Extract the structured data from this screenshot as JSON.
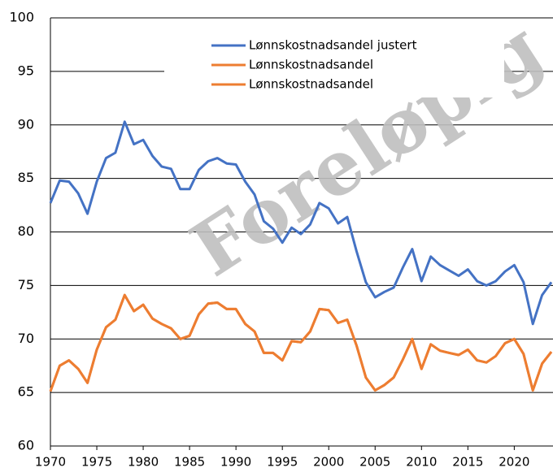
{
  "chart_data": {
    "type": "line",
    "watermark": "Foreløpig",
    "x": [
      1970,
      1971,
      1972,
      1973,
      1974,
      1975,
      1976,
      1977,
      1978,
      1979,
      1980,
      1981,
      1982,
      1983,
      1984,
      1985,
      1986,
      1987,
      1988,
      1989,
      1990,
      1991,
      1992,
      1993,
      1994,
      1995,
      1996,
      1997,
      1998,
      1999,
      2000,
      2001,
      2002,
      2003,
      2004,
      2005,
      2006,
      2007,
      2008,
      2009,
      2010,
      2011,
      2012,
      2013,
      2014,
      2015,
      2016,
      2017,
      2018,
      2019,
      2020,
      2021,
      2022,
      2023,
      2024
    ],
    "series": [
      {
        "name": "Lønnskostnadsandel justert",
        "color": "#4472c4",
        "values": [
          82.7,
          84.8,
          84.7,
          83.6,
          81.7,
          84.7,
          86.9,
          87.4,
          90.3,
          88.2,
          88.6,
          87.1,
          86.1,
          85.9,
          84.0,
          84.0,
          85.8,
          86.6,
          86.9,
          86.4,
          86.3,
          84.7,
          83.5,
          81.0,
          80.3,
          79.0,
          80.4,
          79.8,
          80.7,
          82.7,
          82.2,
          80.8,
          81.4,
          78.2,
          75.3,
          73.9,
          74.4,
          74.8,
          76.7,
          78.4,
          75.4,
          77.7,
          76.9,
          76.4,
          75.9,
          76.5,
          75.4,
          75.0,
          75.4,
          76.3,
          76.9,
          75.3,
          71.4,
          74.1,
          75.3
        ]
      },
      {
        "name": "Lønnskostnadsandel",
        "color": "#ed7d31",
        "values": [
          65.1,
          67.5,
          68.0,
          67.2,
          65.9,
          69.0,
          71.1,
          71.8,
          74.1,
          72.6,
          73.2,
          71.9,
          71.4,
          71.0,
          70.0,
          70.3,
          72.3,
          73.3,
          73.4,
          72.8,
          72.8,
          71.4,
          70.7,
          68.7,
          68.7,
          68.0,
          69.8,
          69.7,
          70.7,
          72.8,
          72.7,
          71.5,
          71.8,
          69.4,
          66.4,
          65.2,
          65.7,
          66.4,
          68.1,
          70.0,
          67.2,
          69.5,
          68.9,
          68.7,
          68.5,
          69.0,
          68.0,
          67.8,
          68.4,
          69.6,
          70.0,
          68.6,
          65.2,
          67.7,
          68.8
        ]
      },
      {
        "name": "Lønnskostnadsandel",
        "color": "#ed7d31",
        "values": [
          65.1,
          67.5,
          68.0,
          67.2,
          65.9,
          69.0,
          71.1,
          71.8,
          74.1,
          72.6,
          73.2,
          71.9,
          71.4,
          71.0,
          70.0,
          70.3,
          72.3,
          73.3,
          73.4,
          72.8,
          72.8,
          71.4,
          70.7,
          68.7,
          68.7,
          68.0,
          69.8,
          69.7,
          70.7,
          72.8,
          72.7,
          71.5,
          71.8,
          69.4,
          66.4,
          65.2,
          65.7,
          66.4,
          68.1,
          70.0,
          67.2,
          69.5,
          68.9,
          68.7,
          68.5,
          69.0,
          68.0,
          67.8,
          68.4,
          69.6,
          70.0,
          68.6,
          65.2,
          67.7,
          68.8
        ]
      }
    ],
    "xlim": [
      1970,
      2024
    ],
    "xticks": [
      1970,
      1975,
      1980,
      1985,
      1990,
      1995,
      2000,
      2005,
      2010,
      2015,
      2020
    ],
    "ylim": [
      60,
      100
    ],
    "yticks": [
      60,
      65,
      70,
      75,
      80,
      85,
      90,
      95,
      100
    ],
    "grid": true,
    "legend": "top-right"
  }
}
